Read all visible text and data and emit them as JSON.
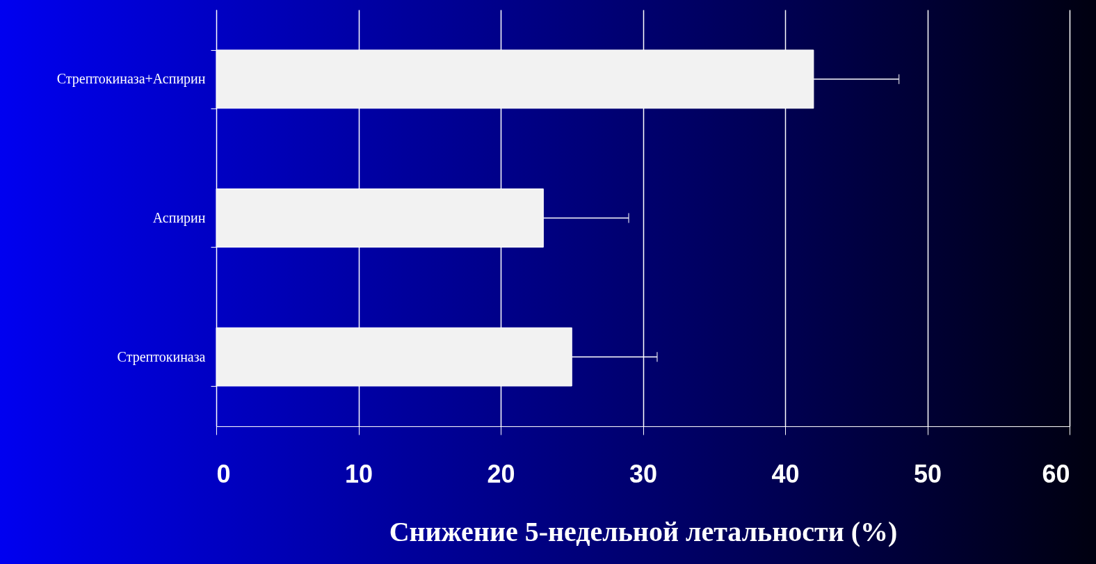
{
  "chart_data": {
    "type": "bar",
    "orientation": "horizontal",
    "xlabel": "Снижение 5-недельной летальности (%)",
    "categories": [
      "Стрептокиназа+Аспирин",
      "Аспирин",
      "Стрептокиназа"
    ],
    "values": [
      42,
      23,
      25
    ],
    "color": "#f2f2f2",
    "errors": [
      [
        42,
        48
      ],
      [
        23,
        29
      ],
      [
        25,
        31
      ]
    ],
    "xlim": [
      0,
      60
    ],
    "xticks": [
      0,
      10,
      20,
      30,
      40,
      50,
      60
    ],
    "grid": "x"
  }
}
